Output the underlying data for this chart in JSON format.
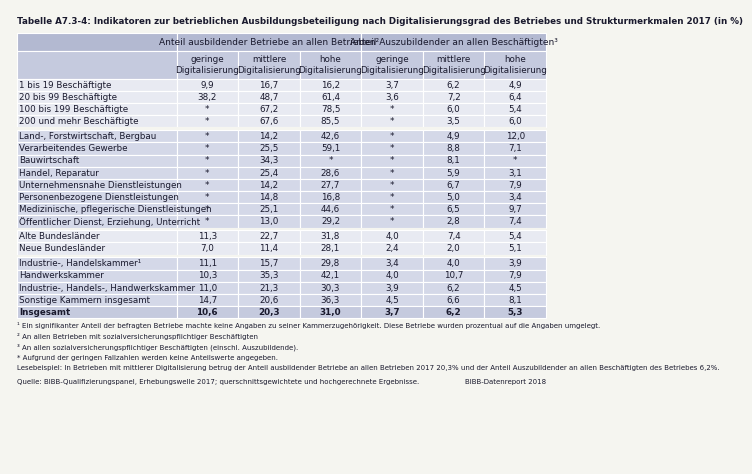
{
  "title": "Tabelle A7.3-4: Indikatoren zur betrieblichen Ausbildungsbeteiligung nach Digitalisierungsgrad des Betriebes und Strukturmerkmalen 2017 (in %)",
  "col_header1": [
    "Anteil ausbildender Betriebe an allen Betrieben²",
    "Anteil Auszubildender an allen Beschäftigten³"
  ],
  "col_header2": [
    "geringe\nDigitalisierung",
    "mittlere\nDigitalisierung",
    "hohe\nDigitalisierung",
    "geringe\nDigitalisierung",
    "mittlere\nDigitalisierung",
    "hohe\nDigitalisierung"
  ],
  "row_labels": [
    "1 bis 19 Beschäftigte",
    "20 bis 99 Beschäftigte",
    "100 bis 199 Beschäftigte",
    "200 und mehr Beschäftigte",
    "Land-, Forstwirtschaft, Bergbau",
    "Verarbeitendes Gewerbe",
    "Bauwirtschaft",
    "Handel, Reparatur",
    "Unternehmensnahe Dienstleistungen",
    "Personenbezogene Dienstleistungen",
    "Medizinische, pflegerische Dienstleistungen",
    "Öffentlicher Dienst, Erziehung, Unterricht",
    "Alte Bundesländer",
    "Neue Bundesländer",
    "Industrie-, Handelskammer¹",
    "Handwerkskammer",
    "Industrie-, Handels-, Handwerkskammer",
    "Sonstige Kammern insgesamt",
    "Insgesamt"
  ],
  "data": [
    [
      "9,9",
      "16,7",
      "16,2",
      "3,7",
      "6,2",
      "4,9"
    ],
    [
      "38,2",
      "48,7",
      "61,4",
      "3,6",
      "7,2",
      "6,4"
    ],
    [
      "*",
      "67,2",
      "78,5",
      "*",
      "6,0",
      "5,4"
    ],
    [
      "*",
      "67,6",
      "85,5",
      "*",
      "3,5",
      "6,0"
    ],
    [
      "*",
      "14,2",
      "42,6",
      "*",
      "4,9",
      "12,0"
    ],
    [
      "*",
      "25,5",
      "59,1",
      "*",
      "8,8",
      "7,1"
    ],
    [
      "*",
      "34,3",
      "*",
      "*",
      "8,1",
      "*"
    ],
    [
      "*",
      "25,4",
      "28,6",
      "*",
      "5,9",
      "3,1"
    ],
    [
      "*",
      "14,2",
      "27,7",
      "*",
      "6,7",
      "7,9"
    ],
    [
      "*",
      "14,8",
      "16,8",
      "*",
      "5,0",
      "3,4"
    ],
    [
      "*",
      "25,1",
      "44,6",
      "*",
      "6,5",
      "9,7"
    ],
    [
      "*",
      "13,0",
      "29,2",
      "*",
      "2,8",
      "7,4"
    ],
    [
      "11,3",
      "22,7",
      "31,8",
      "4,0",
      "7,4",
      "5,4"
    ],
    [
      "7,0",
      "11,4",
      "28,1",
      "2,4",
      "2,0",
      "5,1"
    ],
    [
      "11,1",
      "15,7",
      "29,8",
      "3,4",
      "4,0",
      "3,9"
    ],
    [
      "10,3",
      "35,3",
      "42,1",
      "4,0",
      "10,7",
      "7,9"
    ],
    [
      "11,0",
      "21,3",
      "30,3",
      "3,9",
      "6,2",
      "4,5"
    ],
    [
      "14,7",
      "20,6",
      "36,3",
      "4,5",
      "6,6",
      "8,1"
    ],
    [
      "10,6",
      "20,3",
      "31,0",
      "3,7",
      "6,2",
      "5,3"
    ]
  ],
  "bold_rows": [
    18
  ],
  "footnote1": "¹ Ein signifikanter Anteil der befragten Betriebe machte keine Angaben zu seiner Kammerzugehörigkeit. Diese Betriebe wurden prozentual auf die Angaben umgelegt.",
  "footnote2": "² An allen Betrieben mit sozialversicherungspflichtiger Beschäftigten",
  "footnote3": "³ An allen sozialversicherungspflichtiger Beschäftigten (einschl. Auszubildende).",
  "footnote4": "* Aufgrund der geringen Fallzahlen werden keine Anteilswerte angegeben.",
  "footnote5": "Lesebeispiel: In Betrieben mit mittlerer Digitalisierung betrug der Anteil ausbildender Betriebe an allen Betrieben 2017 20,3% und der Anteil Auszubildender an allen Beschäftigten des Betriebes 6,2%.",
  "source": "Quelle: BIBB-Qualifizierungspanel, Erhebungswelle 2017; querschnittsgewichtete und hochgerechnete Ergebnisse.",
  "source_right": "BIBB-Datenreport 2018",
  "bg_header": "#b3b9d1",
  "bg_subheader": "#c5cade",
  "bg_row_light": "#e8eaf2",
  "bg_row_dark": "#d4d8e8",
  "bg_total": "#c5cade",
  "bg_white": "#f5f5f0",
  "text_color": "#1a1a2e",
  "border_color": "#ffffff"
}
